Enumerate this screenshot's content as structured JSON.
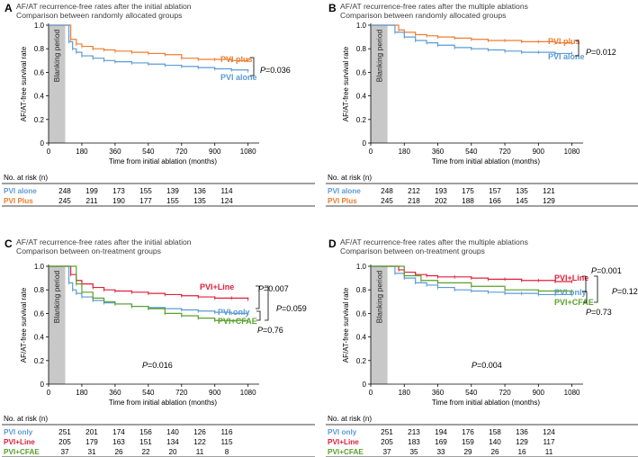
{
  "chart_data": [
    {
      "panel_letter": "A",
      "type": "line",
      "title": "AF/AT recurrence-free rates after the initial ablation",
      "subtitle": "Comparison between randomly allocated groups",
      "xlabel": "Time from initial ablation (months)",
      "ylabel": "AF/AT-free survival rate",
      "xlim": [
        0,
        1140
      ],
      "ylim": [
        0,
        1.0
      ],
      "xticks": [
        "0",
        "180",
        "360",
        "540",
        "720",
        "900",
        "1080"
      ],
      "yticks": [
        "0",
        "0.2",
        "0.4",
        "0.6",
        "0.8",
        "1.0"
      ],
      "blanking_label": "Blanking period",
      "blanking_end": 90,
      "series": [
        {
          "name": "PVI plus",
          "color": "#ed7d31",
          "x": [
            0,
            90,
            120,
            150,
            180,
            240,
            300,
            360,
            450,
            540,
            630,
            720,
            810,
            900,
            990,
            1080
          ],
          "y": [
            1.0,
            1.0,
            0.88,
            0.84,
            0.82,
            0.8,
            0.79,
            0.78,
            0.77,
            0.76,
            0.75,
            0.72,
            0.71,
            0.71,
            0.7,
            0.7
          ]
        },
        {
          "name": "PVI alone",
          "color": "#5b9bd5",
          "x": [
            0,
            90,
            110,
            130,
            150,
            180,
            240,
            300,
            360,
            450,
            540,
            630,
            720,
            810,
            900,
            990,
            1080
          ],
          "y": [
            1.0,
            1.0,
            0.86,
            0.8,
            0.77,
            0.74,
            0.72,
            0.7,
            0.69,
            0.68,
            0.67,
            0.66,
            0.65,
            0.64,
            0.63,
            0.62,
            0.61
          ]
        }
      ],
      "annotations": [
        {
          "text": "P=0.036",
          "between": [
            "PVI plus",
            "PVI alone"
          ]
        }
      ],
      "risk_table": {
        "header": "No. at risk (n)",
        "rows": [
          {
            "label": "PVI alone",
            "color": "#5b9bd5",
            "values": [
              "248",
              "199",
              "173",
              "155",
              "139",
              "136",
              "114"
            ]
          },
          {
            "label": "PVI Plus",
            "color": "#ed7d31",
            "values": [
              "245",
              "211",
              "190",
              "177",
              "155",
              "135",
              "124"
            ]
          }
        ]
      }
    },
    {
      "panel_letter": "B",
      "type": "line",
      "title": "AF/AT recurrence-free rates after the multiple ablations",
      "subtitle": "Comparison between randomly allocated groups",
      "xlabel": "Time from initial ablation (months)",
      "ylabel": "AF/AT-free survival rate",
      "xlim": [
        0,
        1140
      ],
      "ylim": [
        0,
        1.0
      ],
      "xticks": [
        "0",
        "180",
        "360",
        "540",
        "720",
        "900",
        "1080"
      ],
      "yticks": [
        "0",
        "0.2",
        "0.4",
        "0.6",
        "0.8",
        "1.0"
      ],
      "blanking_label": "Blanking period",
      "blanking_end": 90,
      "series": [
        {
          "name": "PVI plus",
          "color": "#ed7d31",
          "x": [
            0,
            90,
            150,
            180,
            240,
            300,
            360,
            450,
            540,
            630,
            720,
            810,
            900,
            990,
            1080
          ],
          "y": [
            1.0,
            1.0,
            0.96,
            0.94,
            0.92,
            0.91,
            0.9,
            0.89,
            0.88,
            0.87,
            0.87,
            0.86,
            0.86,
            0.85,
            0.85
          ]
        },
        {
          "name": "PVI alone",
          "color": "#5b9bd5",
          "x": [
            0,
            90,
            130,
            180,
            240,
            300,
            360,
            450,
            540,
            630,
            720,
            810,
            900,
            990,
            1080
          ],
          "y": [
            1.0,
            1.0,
            0.94,
            0.9,
            0.87,
            0.85,
            0.83,
            0.81,
            0.8,
            0.79,
            0.78,
            0.77,
            0.77,
            0.76,
            0.76
          ]
        }
      ],
      "annotations": [
        {
          "text": "P=0.012",
          "between": [
            "PVI plus",
            "PVI alone"
          ]
        }
      ],
      "risk_table": {
        "header": "No. at risk (n)",
        "rows": [
          {
            "label": "PVI alone",
            "color": "#5b9bd5",
            "values": [
              "248",
              "212",
              "193",
              "175",
              "157",
              "135",
              "121"
            ]
          },
          {
            "label": "PVI Plus",
            "color": "#ed7d31",
            "values": [
              "245",
              "218",
              "202",
              "188",
              "166",
              "145",
              "129"
            ]
          }
        ]
      }
    },
    {
      "panel_letter": "C",
      "type": "line",
      "title": "AF/AT recurrence-free rates after the initial ablation",
      "subtitle": "Comparison between on-treatment groups",
      "xlabel": "Time from initial ablation (months)",
      "ylabel": "AF/AT-free survival rate",
      "xlim": [
        0,
        1140
      ],
      "ylim": [
        0,
        1.0
      ],
      "xticks": [
        "0",
        "180",
        "360",
        "540",
        "720",
        "900",
        "1080"
      ],
      "yticks": [
        "0",
        "0.2",
        "0.4",
        "0.6",
        "0.8",
        "1.0"
      ],
      "blanking_label": "Blanking period",
      "blanking_end": 90,
      "series": [
        {
          "name": "PVI+Line",
          "color": "#e0203c",
          "x": [
            0,
            90,
            120,
            150,
            180,
            240,
            300,
            360,
            450,
            540,
            630,
            720,
            810,
            900,
            990,
            1080
          ],
          "y": [
            1.0,
            1.0,
            0.93,
            0.88,
            0.85,
            0.82,
            0.8,
            0.79,
            0.78,
            0.77,
            0.76,
            0.75,
            0.74,
            0.73,
            0.73,
            0.72
          ]
        },
        {
          "name": "PVI only",
          "color": "#5b9bd5",
          "x": [
            0,
            90,
            110,
            130,
            150,
            180,
            240,
            300,
            360,
            450,
            540,
            630,
            720,
            810,
            900,
            990,
            1080
          ],
          "y": [
            1.0,
            1.0,
            0.86,
            0.8,
            0.77,
            0.74,
            0.71,
            0.69,
            0.68,
            0.66,
            0.65,
            0.64,
            0.63,
            0.62,
            0.61,
            0.6,
            0.6
          ]
        },
        {
          "name": "PVI+CFAE",
          "color": "#5aa02c",
          "x": [
            0,
            90,
            150,
            180,
            240,
            300,
            360,
            450,
            540,
            630,
            720,
            810,
            900,
            1080
          ],
          "y": [
            1.0,
            1.0,
            0.85,
            0.78,
            0.73,
            0.7,
            0.68,
            0.66,
            0.64,
            0.6,
            0.58,
            0.56,
            0.54,
            0.54
          ]
        }
      ],
      "annotations": [
        {
          "text": "P=0.007",
          "between": [
            "PVI+Line",
            "PVI only"
          ]
        },
        {
          "text": "P=0.059",
          "between": [
            "PVI+Line",
            "PVI+CFAE"
          ]
        },
        {
          "text": "P=0.76",
          "between": [
            "PVI only",
            "PVI+CFAE"
          ]
        },
        {
          "text": "P=0.016",
          "position": "bottom-center"
        }
      ],
      "risk_table": {
        "header": "No. at risk (n)",
        "rows": [
          {
            "label": "PVI only",
            "color": "#5b9bd5",
            "values": [
              "251",
              "201",
              "174",
              "156",
              "140",
              "126",
              "116"
            ]
          },
          {
            "label": "PVI+Line",
            "color": "#e0203c",
            "values": [
              "205",
              "179",
              "163",
              "151",
              "134",
              "122",
              "115"
            ]
          },
          {
            "label": "PVI+CFAE",
            "color": "#5aa02c",
            "values": [
              "37",
              "31",
              "26",
              "22",
              "20",
              "11",
              "8"
            ]
          }
        ]
      }
    },
    {
      "panel_letter": "D",
      "type": "line",
      "title": "AF/AT recurrence-free rates after the multiple ablations",
      "subtitle": "Comparison between on-treatment groups",
      "xlabel": "Time from initial ablation (months)",
      "ylabel": "AF/AT-free survival rate",
      "xlim": [
        0,
        1140
      ],
      "ylim": [
        0,
        1.0
      ],
      "xticks": [
        "0",
        "180",
        "360",
        "540",
        "720",
        "900",
        "1080"
      ],
      "yticks": [
        "0",
        "0.2",
        "0.4",
        "0.6",
        "0.8",
        "1.0"
      ],
      "blanking_label": "Blanking period",
      "blanking_end": 90,
      "series": [
        {
          "name": "PVI+Line",
          "color": "#e0203c",
          "x": [
            0,
            90,
            150,
            180,
            240,
            300,
            360,
            450,
            540,
            630,
            720,
            810,
            900,
            990,
            1080
          ],
          "y": [
            1.0,
            1.0,
            0.97,
            0.95,
            0.93,
            0.92,
            0.91,
            0.91,
            0.9,
            0.89,
            0.89,
            0.88,
            0.88,
            0.87,
            0.87
          ]
        },
        {
          "name": "PVI only",
          "color": "#5b9bd5",
          "x": [
            0,
            90,
            130,
            180,
            240,
            300,
            360,
            450,
            540,
            630,
            720,
            810,
            900,
            990,
            1080
          ],
          "y": [
            1.0,
            1.0,
            0.94,
            0.9,
            0.86,
            0.84,
            0.82,
            0.8,
            0.79,
            0.78,
            0.77,
            0.77,
            0.76,
            0.76,
            0.76
          ]
        },
        {
          "name": "PVI+CFAE",
          "color": "#5aa02c",
          "x": [
            0,
            90,
            180,
            270,
            360,
            540,
            720,
            900,
            1080
          ],
          "y": [
            1.0,
            1.0,
            0.92,
            0.88,
            0.86,
            0.83,
            0.8,
            0.79,
            0.79
          ]
        }
      ],
      "annotations": [
        {
          "text": "P=0.001",
          "between": [
            "PVI+Line",
            "PVI only"
          ]
        },
        {
          "text": "P=0.12",
          "between": [
            "PVI+Line",
            "PVI+CFAE"
          ]
        },
        {
          "text": "P=0.73",
          "between": [
            "PVI only",
            "PVI+CFAE"
          ]
        },
        {
          "text": "P=0.004",
          "position": "bottom-center"
        }
      ],
      "risk_table": {
        "header": "No. at risk (n)",
        "rows": [
          {
            "label": "PVI only",
            "color": "#5b9bd5",
            "values": [
              "251",
              "213",
              "194",
              "176",
              "158",
              "136",
              "124"
            ]
          },
          {
            "label": "PVI+Line",
            "color": "#e0203c",
            "values": [
              "205",
              "183",
              "169",
              "159",
              "140",
              "129",
              "117"
            ]
          },
          {
            "label": "PVI+CFAE",
            "color": "#5aa02c",
            "values": [
              "37",
              "35",
              "33",
              "29",
              "26",
              "16",
              "11"
            ]
          }
        ]
      }
    }
  ]
}
